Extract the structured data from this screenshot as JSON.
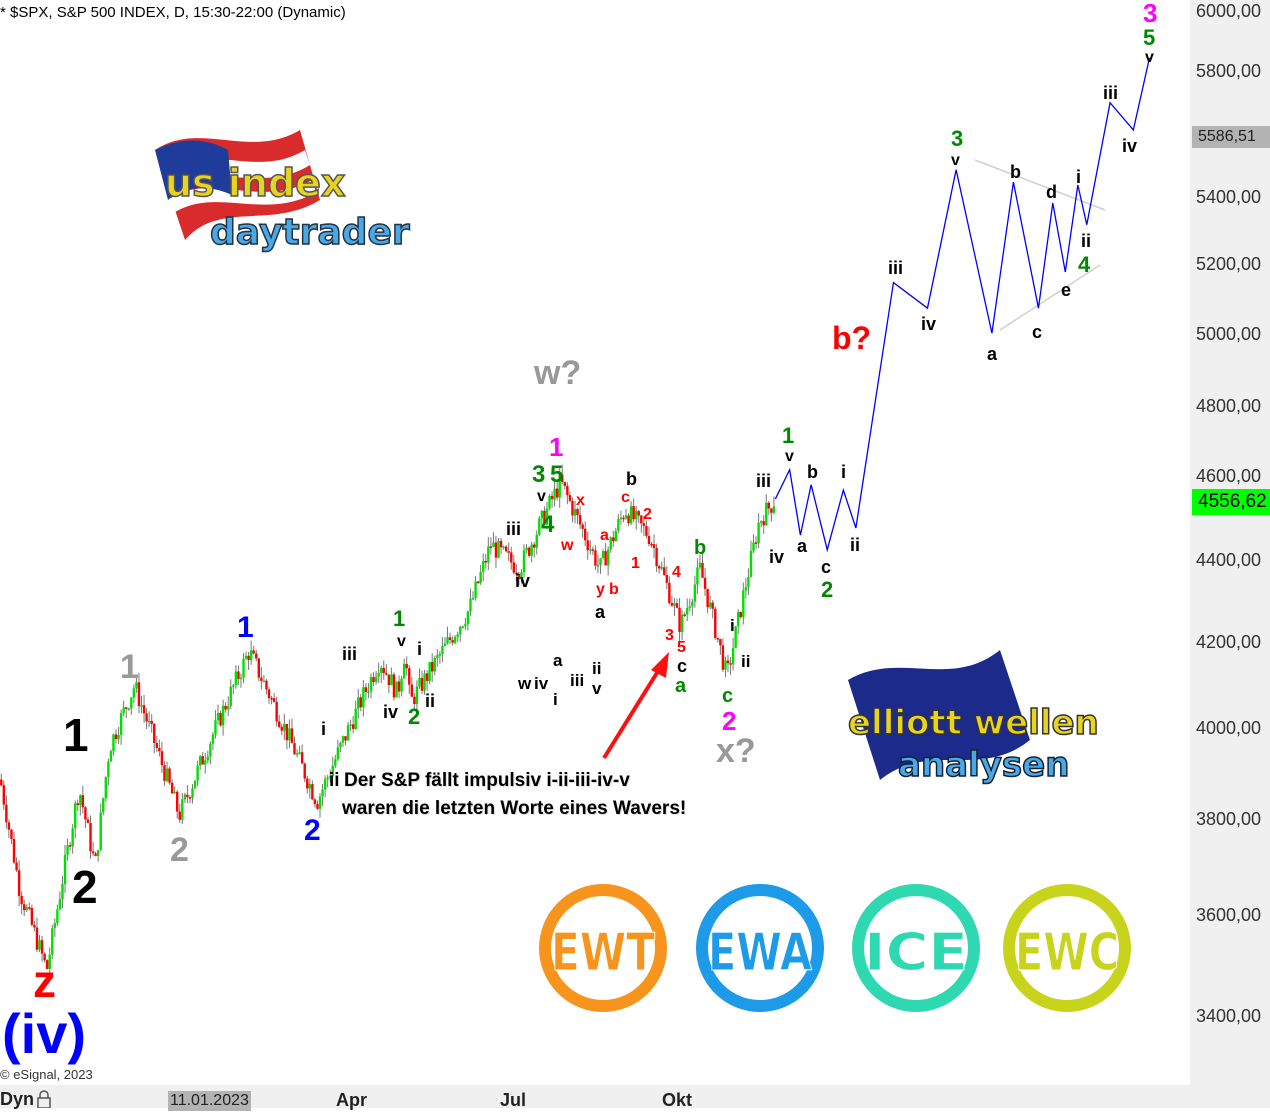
{
  "header": {
    "title": "* $SPX, S&P 500 INDEX, D, 15:30-22:00 (Dynamic)"
  },
  "footer": {
    "copyright": "© eSignal, 2023",
    "mode": "Dyn",
    "lock_icon": "lock-icon"
  },
  "colors": {
    "up": "#00e000",
    "down": "#ff0000",
    "projection": "#0000ff",
    "last_price_badge": "#00ff00",
    "marker_badge": "#b3b3b3"
  },
  "annotation": {
    "line1": "Der S&P fällt impulsiv i-ii-iii-iv-v",
    "line2": "waren die letzten Worte eines Wavers!"
  },
  "logos": {
    "us_index": {
      "line1": "us index",
      "line2": "daytrader"
    },
    "elliott": {
      "line1": "elliott wellen",
      "line2": "analysen"
    },
    "badges": [
      "EWT",
      "EWA",
      "ICE",
      "EWC"
    ],
    "badge_colors": [
      "#f7941d",
      "#1e9be8",
      "#2ed8b0",
      "#c8d41c"
    ]
  },
  "chart_data": {
    "type": "candlestick",
    "title": "$SPX, S&P 500 INDEX, D, 15:30-22:00 (Dynamic)",
    "y_scale": "log",
    "ylim": [
      3250,
      6050
    ],
    "y_ticks": [
      "6000,00",
      "5800,00",
      "5400,00",
      "5200,00",
      "5000,00",
      "4800,00",
      "4600,00",
      "4400,00",
      "4200,00",
      "4000,00",
      "3800,00",
      "3600,00",
      "3400,00"
    ],
    "y_tick_values": [
      6000,
      5800,
      5400,
      5200,
      5000,
      4800,
      4600,
      4400,
      4200,
      4000,
      3800,
      3600,
      3400
    ],
    "x_ticks": [
      "11.01.2023",
      "Apr",
      "Jul",
      "Okt"
    ],
    "x_tick_dates": [
      "2023-01-11",
      "2023-04-01",
      "2023-07-01",
      "2023-10-01"
    ],
    "last_price": "4556,62",
    "marker_price": "5586,51",
    "price_swings": [
      [
        "2022-09-17",
        3888
      ],
      [
        "2022-09-28",
        3650
      ],
      [
        "2022-10-13",
        3491
      ],
      [
        "2022-10-31",
        3870
      ],
      [
        "2022-11-09",
        3700
      ],
      [
        "2022-11-17",
        3960
      ],
      [
        "2022-12-01",
        4100
      ],
      [
        "2022-12-26",
        3810
      ],
      [
        "2023-02-03",
        4180
      ],
      [
        "2023-03-13",
        3840
      ],
      [
        "2023-04-17",
        4160
      ],
      [
        "2023-04-27",
        4080
      ],
      [
        "2023-05-01",
        4180
      ],
      [
        "2023-05-04",
        4060
      ],
      [
        "2023-06-06",
        4280
      ],
      [
        "2023-06-18",
        4440
      ],
      [
        "2023-07-04",
        4380
      ],
      [
        "2023-07-27",
        4600
      ],
      [
        "2023-08-18",
        4380
      ],
      [
        "2023-09-01",
        4530
      ],
      [
        "2023-09-15",
        4460
      ],
      [
        "2023-10-02",
        4240
      ],
      [
        "2023-10-13",
        4380
      ],
      [
        "2023-10-28",
        4120
      ],
      [
        "2023-11-15",
        4500
      ],
      [
        "2023-11-24",
        4556
      ]
    ],
    "projection": [
      [
        "2023-11-24",
        4556
      ],
      [
        "2023-12-02",
        4632
      ],
      [
        "2023-12-08",
        4464
      ],
      [
        "2023-12-14",
        4593
      ],
      [
        "2023-12-23",
        4427
      ],
      [
        "2024-01-01",
        4579
      ],
      [
        "2024-01-08",
        4482
      ],
      [
        "2024-01-29",
        5149
      ],
      [
        "2024-02-17",
        5075
      ],
      [
        "2024-03-04",
        5488
      ],
      [
        "2024-03-24",
        5004
      ],
      [
        "2024-04-05",
        5450
      ],
      [
        "2024-04-19",
        5075
      ],
      [
        "2024-04-27",
        5386
      ],
      [
        "2024-05-04",
        5180
      ],
      [
        "2024-05-11",
        5441
      ],
      [
        "2024-05-16",
        5320
      ],
      [
        "2024-05-29",
        5700
      ],
      [
        "2024-06-11",
        5613
      ],
      [
        "2024-06-20",
        5846
      ]
    ],
    "wave_labels": [
      {
        "t": "z",
        "c": "#ff0000"
      },
      {
        "t": "(iv)",
        "c": "#0000ff"
      },
      {
        "t": "1",
        "c": "#000000"
      },
      {
        "t": "2",
        "c": "#000000"
      },
      {
        "t": "1",
        "c": "#999999"
      },
      {
        "t": "2",
        "c": "#999999"
      },
      {
        "t": "1",
        "c": "#0000ff"
      },
      {
        "t": "2",
        "c": "#0000ff"
      },
      {
        "t": "w?",
        "c": "#999999"
      },
      {
        "t": "x?",
        "c": "#999999"
      },
      {
        "t": "b?",
        "c": "#ff0000"
      },
      {
        "t": "1",
        "c": "#ff00ff"
      },
      {
        "t": "2",
        "c": "#ff00ff"
      },
      {
        "t": "3",
        "c": "#ff00ff"
      },
      {
        "t": "iii",
        "c": "#000"
      },
      {
        "t": "v",
        "c": "#000"
      },
      {
        "t": "i",
        "c": "#000"
      },
      {
        "t": "iv",
        "c": "#000"
      },
      {
        "t": "ii",
        "c": "#000"
      },
      {
        "t": "i",
        "c": "#000"
      },
      {
        "t": "ii",
        "c": "#000"
      },
      {
        "t": "1",
        "c": "#008800"
      },
      {
        "t": "2",
        "c": "#008800"
      },
      {
        "t": "iii",
        "c": "#000"
      },
      {
        "t": "iv",
        "c": "#000"
      },
      {
        "t": "v",
        "c": "#000"
      },
      {
        "t": "3",
        "c": "#008800"
      },
      {
        "t": "5",
        "c": "#008800"
      },
      {
        "t": "4",
        "c": "#008800"
      },
      {
        "t": "x",
        "c": "#ff0000"
      },
      {
        "t": "w",
        "c": "#ff0000"
      },
      {
        "t": "a",
        "c": "#ff0000"
      },
      {
        "t": "y",
        "c": "#ff0000"
      },
      {
        "t": "b",
        "c": "#ff0000"
      },
      {
        "t": "c",
        "c": "#ff0000"
      },
      {
        "t": "2",
        "c": "#ff0000"
      },
      {
        "t": "1",
        "c": "#ff0000"
      },
      {
        "t": "4",
        "c": "#ff0000"
      },
      {
        "t": "3",
        "c": "#ff0000"
      },
      {
        "t": "5",
        "c": "#ff0000"
      },
      {
        "t": "b",
        "c": "#000"
      },
      {
        "t": "a",
        "c": "#000"
      },
      {
        "t": "c",
        "c": "#000"
      },
      {
        "t": "a",
        "c": "#008800"
      },
      {
        "t": "b",
        "c": "#008800"
      },
      {
        "t": "w",
        "c": "#000"
      },
      {
        "t": "iv",
        "c": "#000"
      },
      {
        "t": "a",
        "c": "#000"
      },
      {
        "t": "iii",
        "c": "#000"
      },
      {
        "t": "i",
        "c": "#000"
      },
      {
        "t": "ii",
        "c": "#000"
      },
      {
        "t": "v",
        "c": "#000"
      },
      {
        "t": "i",
        "c": "#000"
      },
      {
        "t": "ii",
        "c": "#000"
      },
      {
        "t": "c",
        "c": "#008800"
      },
      {
        "t": "iii",
        "c": "#000"
      },
      {
        "t": "v",
        "c": "#000"
      },
      {
        "t": "1",
        "c": "#008800"
      },
      {
        "t": "iv",
        "c": "#000"
      },
      {
        "t": "a",
        "c": "#000"
      },
      {
        "t": "b",
        "c": "#000"
      },
      {
        "t": "c",
        "c": "#000"
      },
      {
        "t": "2",
        "c": "#008800"
      },
      {
        "t": "i",
        "c": "#000"
      },
      {
        "t": "ii",
        "c": "#000"
      },
      {
        "t": "iii",
        "c": "#000"
      },
      {
        "t": "iv",
        "c": "#000"
      },
      {
        "t": "3",
        "c": "#008800"
      },
      {
        "t": "v",
        "c": "#000"
      },
      {
        "t": "a",
        "c": "#000"
      },
      {
        "t": "b",
        "c": "#000"
      },
      {
        "t": "c",
        "c": "#000"
      },
      {
        "t": "d",
        "c": "#000"
      },
      {
        "t": "e",
        "c": "#000"
      },
      {
        "t": "i",
        "c": "#000"
      },
      {
        "t": "ii",
        "c": "#000"
      },
      {
        "t": "4",
        "c": "#008800"
      },
      {
        "t": "iii",
        "c": "#000"
      },
      {
        "t": "iv",
        "c": "#000"
      },
      {
        "t": "5",
        "c": "#008800"
      },
      {
        "t": "v",
        "c": "#000"
      }
    ]
  }
}
